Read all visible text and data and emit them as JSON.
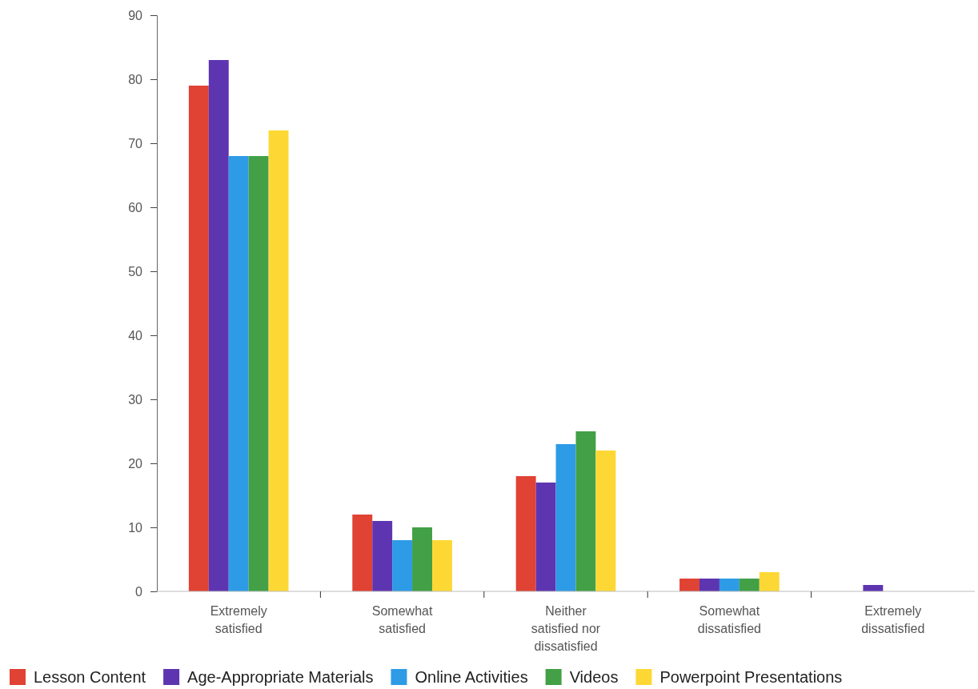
{
  "chart_data": {
    "type": "bar",
    "categories": [
      "Extremely satisfied",
      "Somewhat satisfied",
      "Neither satisfied nor dissatisfied",
      "Somewhat dissatisfied",
      "Extremely dissatisfied"
    ],
    "series": [
      {
        "name": "Lesson Content",
        "color": "#e04234",
        "values": [
          79,
          12,
          18,
          2,
          0
        ]
      },
      {
        "name": "Age-Appropriate Materials",
        "color": "#5e35b1",
        "values": [
          83,
          11,
          17,
          2,
          1
        ]
      },
      {
        "name": "Online Activities",
        "color": "#2e9be6",
        "values": [
          68,
          8,
          23,
          2,
          0
        ]
      },
      {
        "name": "Videos",
        "color": "#43a047",
        "values": [
          68,
          10,
          25,
          2,
          0
        ]
      },
      {
        "name": "Powerpoint Presentations",
        "color": "#fdd835",
        "values": [
          72,
          8,
          22,
          3,
          0
        ]
      }
    ],
    "ylim": [
      0,
      90
    ],
    "yticks": [
      0,
      10,
      20,
      30,
      40,
      50,
      60,
      70,
      80,
      90
    ],
    "legend": "bottom"
  }
}
